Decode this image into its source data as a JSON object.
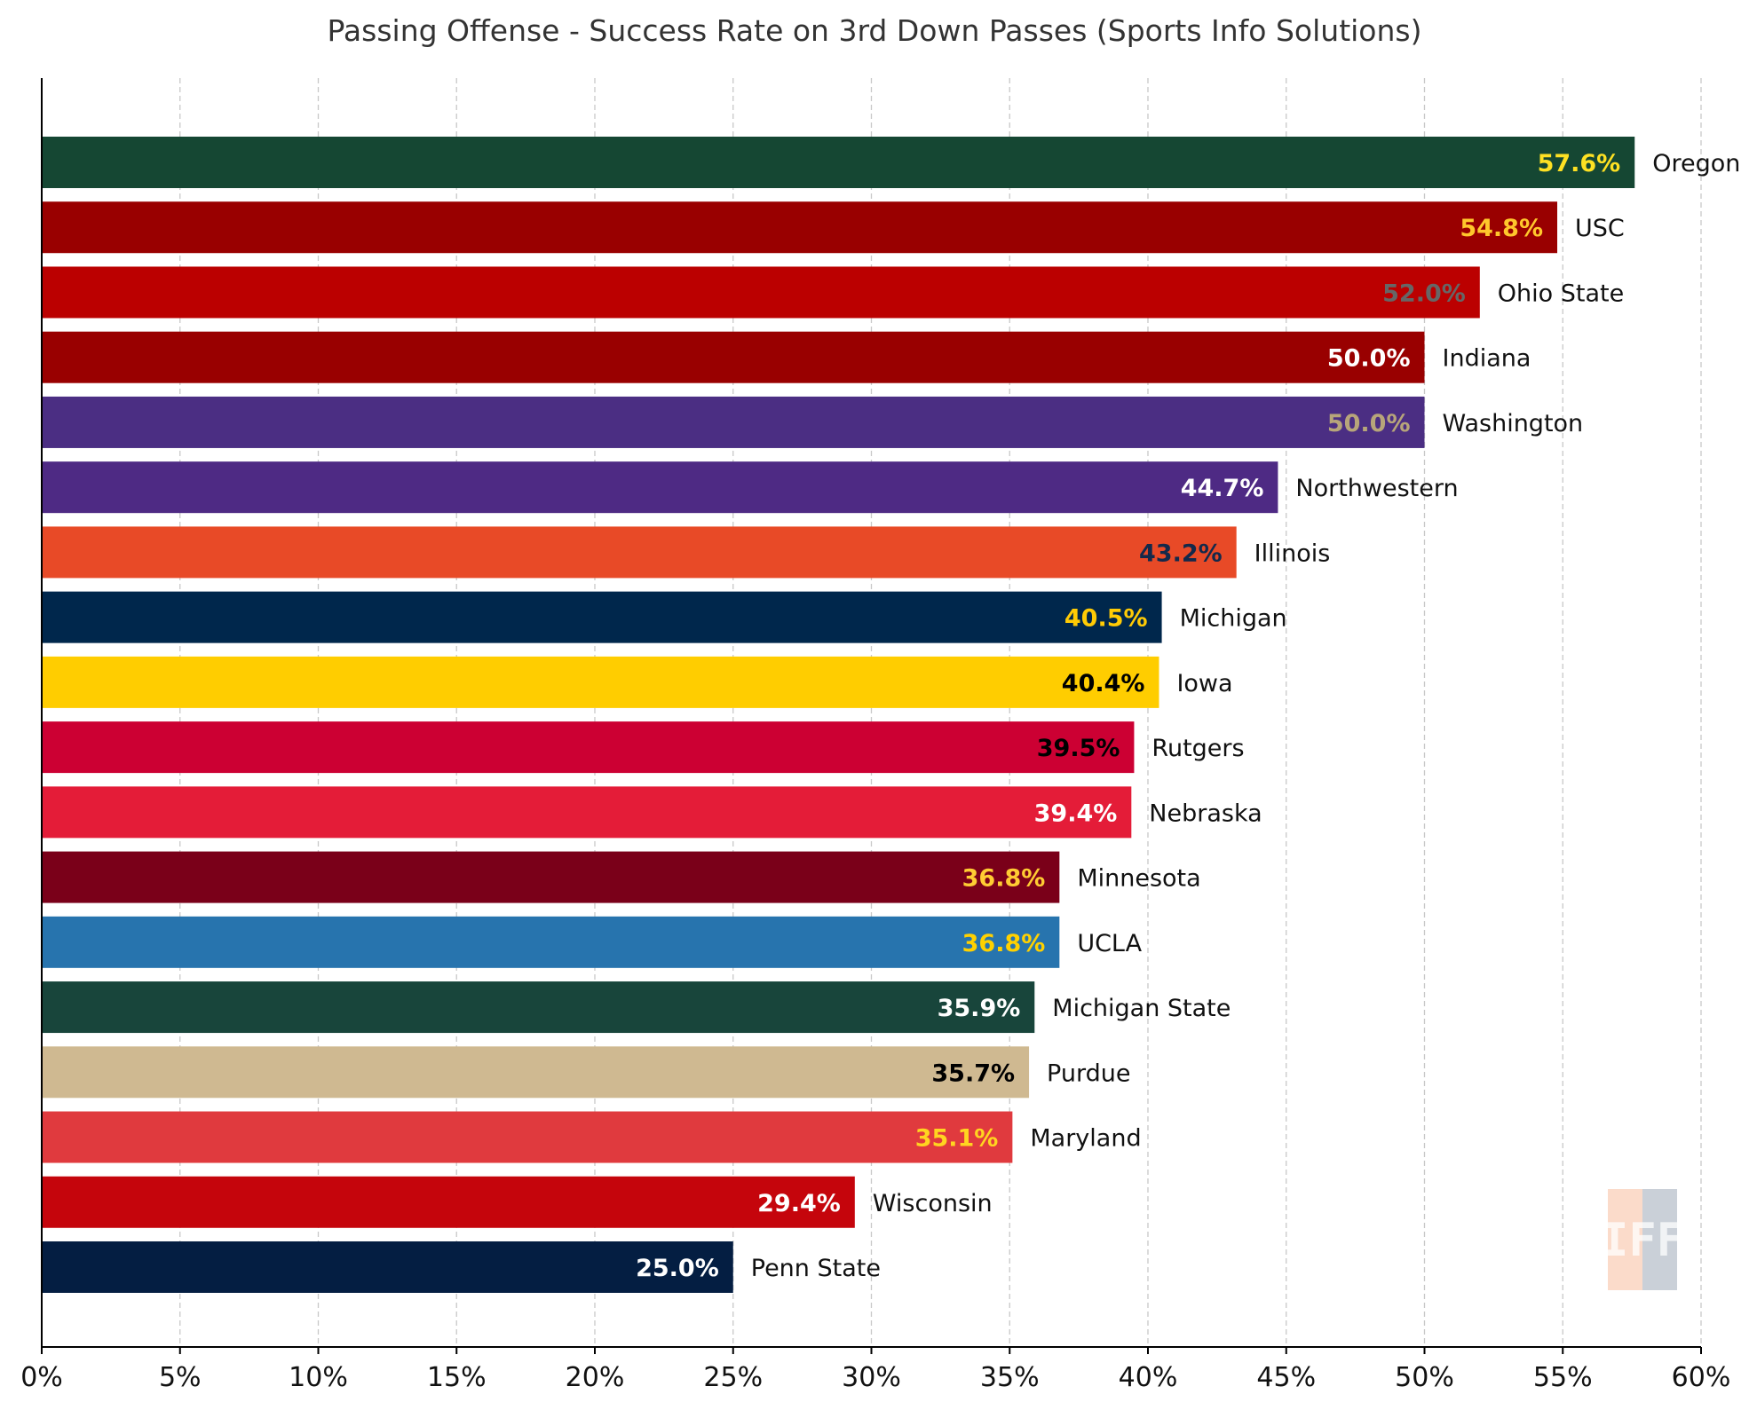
{
  "chart_data": {
    "type": "bar",
    "orientation": "horizontal",
    "title": "Passing Offense - Success Rate on 3rd Down Passes (Sports Info Solutions)",
    "xlabel": "",
    "ylabel": "",
    "xlim": [
      0,
      60
    ],
    "x_ticks": [
      "0%",
      "5%",
      "10%",
      "15%",
      "20%",
      "25%",
      "30%",
      "35%",
      "40%",
      "45%",
      "50%",
      "55%",
      "60%"
    ],
    "grid": "vertical dashed",
    "watermark": "IFF",
    "bars": [
      {
        "team": "Oregon",
        "value": 57.6,
        "label": "57.6%",
        "color": "#154733",
        "label_color": "#FEE123"
      },
      {
        "team": "USC",
        "value": 54.8,
        "label": "54.8%",
        "color": "#990000",
        "label_color": "#FFC72C"
      },
      {
        "team": "Ohio State",
        "value": 52.0,
        "label": "52.0%",
        "color": "#BB0000",
        "label_color": "#666666"
      },
      {
        "team": "Indiana",
        "value": 50.0,
        "label": "50.0%",
        "color": "#990000",
        "label_color": "#FFFFFF"
      },
      {
        "team": "Washington",
        "value": 50.0,
        "label": "50.0%",
        "color": "#4B2E83",
        "label_color": "#B7A57A"
      },
      {
        "team": "Northwestern",
        "value": 44.7,
        "label": "44.7%",
        "color": "#4E2A84",
        "label_color": "#FFFFFF"
      },
      {
        "team": "Illinois",
        "value": 43.2,
        "label": "43.2%",
        "color": "#E84A27",
        "label_color": "#13294B"
      },
      {
        "team": "Michigan",
        "value": 40.5,
        "label": "40.5%",
        "color": "#00274C",
        "label_color": "#FFCB05"
      },
      {
        "team": "Iowa",
        "value": 40.4,
        "label": "40.4%",
        "color": "#FFCD00",
        "label_color": "#000000"
      },
      {
        "team": "Rutgers",
        "value": 39.5,
        "label": "39.5%",
        "color": "#CC0033",
        "label_color": "#000000"
      },
      {
        "team": "Nebraska",
        "value": 39.4,
        "label": "39.4%",
        "color": "#E41C38",
        "label_color": "#FFFFFF"
      },
      {
        "team": "Minnesota",
        "value": 36.8,
        "label": "36.8%",
        "color": "#7A0019",
        "label_color": "#FFCC33"
      },
      {
        "team": "UCLA",
        "value": 36.8,
        "label": "36.8%",
        "color": "#2774AE",
        "label_color": "#FFD100"
      },
      {
        "team": "Michigan State",
        "value": 35.9,
        "label": "35.9%",
        "color": "#18453B",
        "label_color": "#FFFFFF"
      },
      {
        "team": "Purdue",
        "value": 35.7,
        "label": "35.7%",
        "color": "#CFB991",
        "label_color": "#000000"
      },
      {
        "team": "Maryland",
        "value": 35.1,
        "label": "35.1%",
        "color": "#E03A3E",
        "label_color": "#FFD520"
      },
      {
        "team": "Wisconsin",
        "value": 29.4,
        "label": "29.4%",
        "color": "#C5050C",
        "label_color": "#FFFFFF"
      },
      {
        "team": "Penn State",
        "value": 25.0,
        "label": "25.0%",
        "color": "#041E42",
        "label_color": "#FFFFFF"
      }
    ]
  }
}
